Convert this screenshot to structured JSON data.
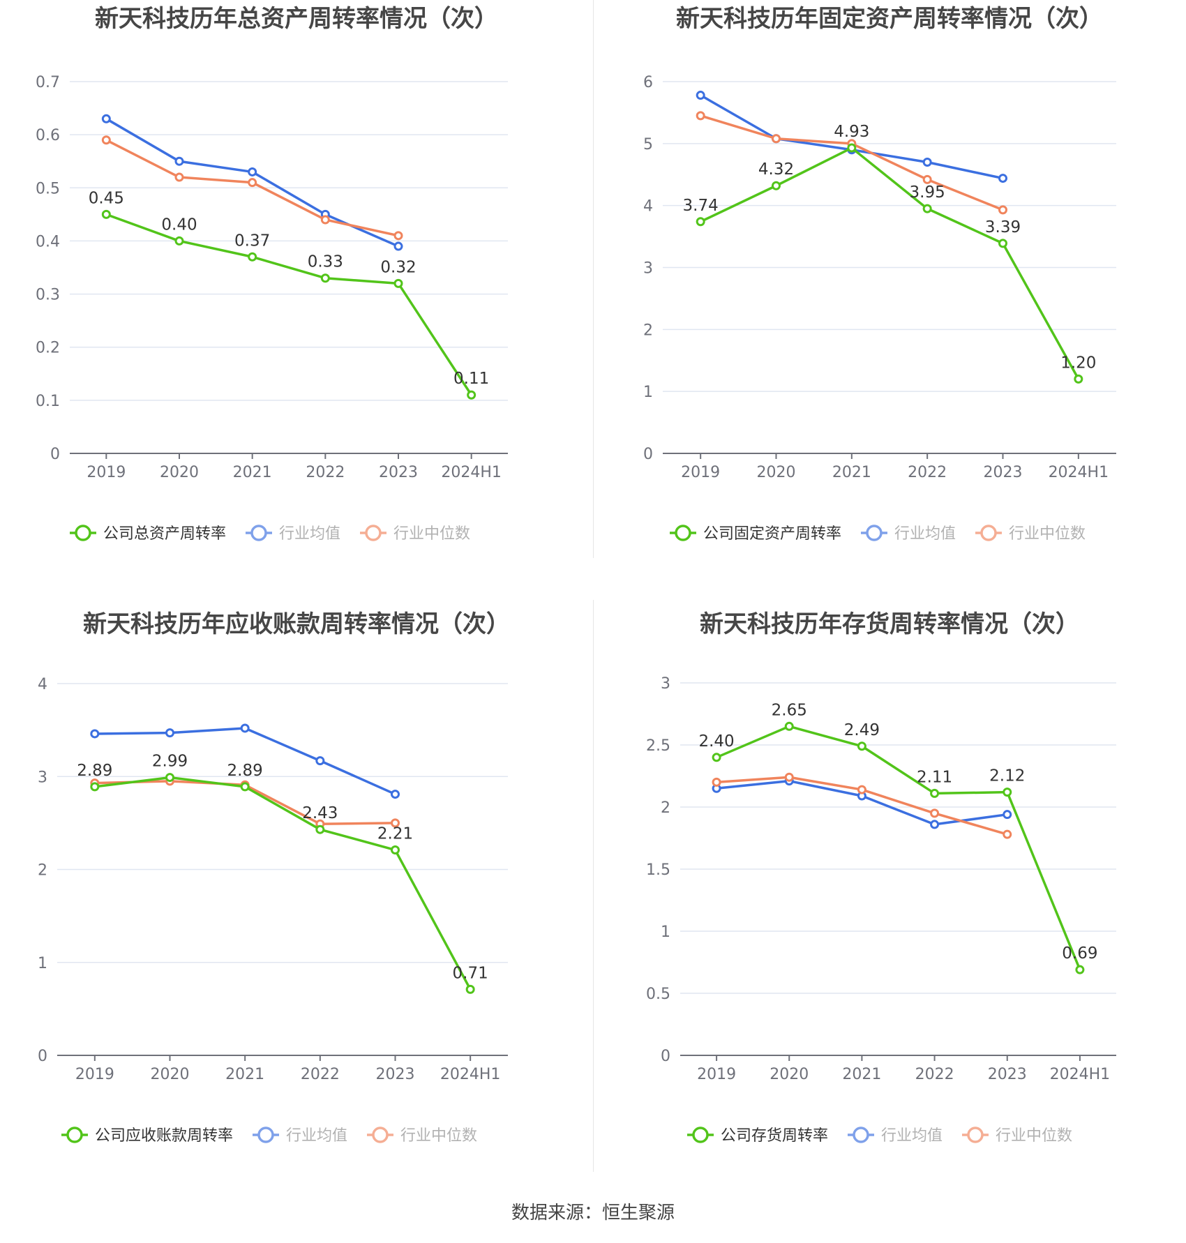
{
  "source": "数据来源：恒生聚源",
  "colors": {
    "company": "#52c41a",
    "avg": "#3b6fe0",
    "median": "#f0845c",
    "grid": "#e0e6f1",
    "axis": "#6e7079",
    "text": "#444444"
  },
  "chart_data": [
    {
      "type": "line",
      "title": "新天科技历年总资产周转率情况（次）",
      "categories": [
        "2019",
        "2020",
        "2021",
        "2022",
        "2023",
        "2024H1"
      ],
      "ylim": [
        0,
        0.7
      ],
      "yticks": [
        "0",
        "0.1",
        "0.2",
        "0.3",
        "0.4",
        "0.5",
        "0.6",
        "0.7"
      ],
      "tick_values": [
        0,
        0.1,
        0.2,
        0.3,
        0.4,
        0.5,
        0.6,
        0.7
      ],
      "grid": true,
      "legend_position": "bottom",
      "series": [
        {
          "name": "公司总资产周转率",
          "key": "company",
          "values": [
            0.45,
            0.4,
            0.37,
            0.33,
            0.32,
            0.11
          ],
          "labels": [
            "0.45",
            "0.40",
            "0.37",
            "0.33",
            "0.32",
            "0.11"
          ]
        },
        {
          "name": "行业均值",
          "key": "avg",
          "values": [
            0.63,
            0.55,
            0.53,
            0.45,
            0.39,
            null
          ]
        },
        {
          "name": "行业中位数",
          "key": "median",
          "values": [
            0.59,
            0.52,
            0.51,
            0.44,
            0.41,
            null
          ]
        }
      ]
    },
    {
      "type": "line",
      "title": "新天科技历年固定资产周转率情况（次）",
      "categories": [
        "2019",
        "2020",
        "2021",
        "2022",
        "2023",
        "2024H1"
      ],
      "ylim": [
        0,
        6
      ],
      "yticks": [
        "0",
        "1",
        "2",
        "3",
        "4",
        "5",
        "6"
      ],
      "tick_values": [
        0,
        1,
        2,
        3,
        4,
        5,
        6
      ],
      "grid": true,
      "legend_position": "bottom",
      "series": [
        {
          "name": "公司固定资产周转率",
          "key": "company",
          "values": [
            3.74,
            4.32,
            4.93,
            3.95,
            3.39,
            1.2
          ],
          "labels": [
            "3.74",
            "4.32",
            "4.93",
            "3.95",
            "3.39",
            "1.20"
          ]
        },
        {
          "name": "行业均值",
          "key": "avg",
          "values": [
            5.78,
            5.08,
            4.9,
            4.7,
            4.44,
            null
          ]
        },
        {
          "name": "行业中位数",
          "key": "median",
          "values": [
            5.45,
            5.08,
            5.0,
            4.42,
            3.93,
            null
          ]
        }
      ]
    },
    {
      "type": "line",
      "title": "新天科技历年应收账款周转率情况（次）",
      "categories": [
        "2019",
        "2020",
        "2021",
        "2022",
        "2023",
        "2024H1"
      ],
      "ylim": [
        0,
        4
      ],
      "yticks": [
        "0",
        "1",
        "2",
        "3",
        "4"
      ],
      "tick_values": [
        0,
        1,
        2,
        3,
        4
      ],
      "grid": true,
      "legend_position": "bottom",
      "series": [
        {
          "name": "公司应收账款周转率",
          "key": "company",
          "values": [
            2.89,
            2.99,
            2.89,
            2.43,
            2.21,
            0.71
          ],
          "labels": [
            "2.89",
            "2.99",
            "2.89",
            "2.43",
            "2.21",
            "0.71"
          ]
        },
        {
          "name": "行业均值",
          "key": "avg",
          "values": [
            3.46,
            3.47,
            3.52,
            3.17,
            2.81,
            null
          ]
        },
        {
          "name": "行业中位数",
          "key": "median",
          "values": [
            2.93,
            2.95,
            2.91,
            2.49,
            2.5,
            null
          ]
        }
      ]
    },
    {
      "type": "line",
      "title": "新天科技历年存货周转率情况（次）",
      "categories": [
        "2019",
        "2020",
        "2021",
        "2022",
        "2023",
        "2024H1"
      ],
      "ylim": [
        0,
        3
      ],
      "yticks": [
        "0",
        "0.5",
        "1",
        "1.5",
        "2",
        "2.5",
        "3"
      ],
      "tick_values": [
        0,
        0.5,
        1,
        1.5,
        2,
        2.5,
        3
      ],
      "grid": true,
      "legend_position": "bottom",
      "series": [
        {
          "name": "公司存货周转率",
          "key": "company",
          "values": [
            2.4,
            2.65,
            2.49,
            2.11,
            2.12,
            0.69
          ],
          "labels": [
            "2.40",
            "2.65",
            "2.49",
            "2.11",
            "2.12",
            "0.69"
          ]
        },
        {
          "name": "行业均值",
          "key": "avg",
          "values": [
            2.15,
            2.21,
            2.09,
            1.86,
            1.94,
            null
          ]
        },
        {
          "name": "行业中位数",
          "key": "median",
          "values": [
            2.2,
            2.24,
            2.14,
            1.95,
            1.78,
            null
          ]
        }
      ]
    }
  ]
}
